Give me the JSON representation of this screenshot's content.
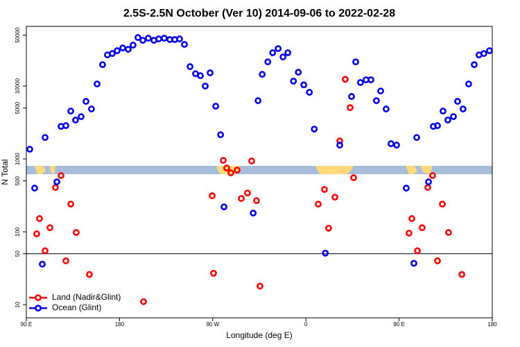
{
  "chart_data": {
    "type": "scatter",
    "title": "2.5S-2.5N October (Ver 10)   2014-09-06 to 2022-02-28",
    "x_label": "Longitude (deg E)",
    "y_label": "N Total",
    "xlim": [
      90,
      540
    ],
    "xticks": [
      {
        "value": 90,
        "label": "90 E"
      },
      180,
      {
        "value": 270,
        "label": "90 W"
      },
      {
        "value": 360,
        "label": "0"
      },
      {
        "value": 450,
        "label": "90 E"
      },
      {
        "value": 540,
        "label": "180"
      }
    ],
    "ylim": [
      6.6,
      66000
    ],
    "y_log": true,
    "yticks": [
      10,
      50,
      100,
      500,
      1000,
      5000,
      10000,
      50000
    ],
    "reference_line": 50,
    "legend": "bottom-left",
    "series": [
      {
        "name": "Land (Nadir&Glint)",
        "color": "#ff0000",
        "x": [
          100.0,
          102.7,
          108.1,
          112.8,
          118.1,
          123.5,
          128.2,
          132.9,
          138.2,
          150.9,
          203.2,
          269.5,
          270.8,
          280.2,
          283.5,
          287.5,
          293.6,
          297.6,
          303.6,
          307.6,
          312.3,
          315.7,
          371.9,
          377.9,
          381.9,
          388.0,
          392.7,
          398.0,
          402.7,
          406.1,
          459.6,
          462.3,
          467.7,
          472.3,
          477.7,
          482.4,
          487.1,
          491.8,
          497.8,
          510.6
        ],
        "values": [
          94,
          152,
          55,
          114,
          407,
          591,
          40,
          240,
          98,
          26,
          11,
          313,
          27,
          957,
          752,
          645,
          704,
          287,
          341,
          936,
          268,
          18,
          240,
          381,
          112,
          299,
          1770,
          12400,
          5070,
          553,
          96,
          152,
          55,
          114,
          407,
          591,
          40,
          240,
          98,
          26
        ]
      },
      {
        "name": "Ocean (Glint)",
        "color": "#0000ee",
        "x": [
          93.3,
          98.0,
          105.4,
          108.1,
          119.5,
          123.5,
          128.2,
          132.9,
          137.5,
          142.9,
          147.6,
          152.9,
          158.3,
          163.6,
          168.3,
          173.0,
          177.7,
          183.1,
          188.4,
          193.1,
          197.8,
          202.5,
          207.8,
          213.2,
          217.9,
          223.2,
          228.6,
          233.3,
          238.0,
          242.7,
          248.1,
          253.4,
          258.1,
          262.8,
          267.5,
          272.9,
          277.6,
          280.9,
          309.1,
          313.8,
          317.8,
          323.2,
          327.9,
          333.2,
          337.9,
          342.6,
          348.0,
          352.7,
          358.0,
          363.4,
          368.1,
          378.8,
          392.7,
          404.1,
          408.1,
          412.7,
          418.1,
          422.8,
          428.1,
          432.2,
          437.5,
          442.2,
          447.6,
          456.9,
          464.3,
          467.0,
          478.4,
          483.1,
          487.1,
          492.4,
          497.1,
          502.5,
          506.5,
          511.8,
          517.2,
          522.6,
          527.2,
          531.9,
          537.3
        ],
        "values": [
          1360,
          398,
          36,
          1970,
          485,
          2800,
          2870,
          4540,
          3420,
          3810,
          6170,
          4850,
          10700,
          19700,
          26800,
          28000,
          30600,
          33400,
          32000,
          36500,
          46400,
          42500,
          45400,
          42500,
          44400,
          45400,
          43500,
          43500,
          44400,
          37300,
          18500,
          14800,
          13900,
          10000,
          15200,
          5300,
          2150,
          220,
          181,
          6310,
          14500,
          21500,
          28700,
          32700,
          25100,
          28700,
          11700,
          15500,
          10400,
          8210,
          2570,
          51,
          1550,
          7200,
          21500,
          11200,
          12200,
          12200,
          6310,
          8570,
          4850,
          1620,
          1550,
          398,
          37,
          1970,
          485,
          2800,
          2870,
          4540,
          3420,
          3810,
          6170,
          4850,
          10700,
          19700,
          26800,
          28000,
          30600
        ]
      }
    ]
  }
}
